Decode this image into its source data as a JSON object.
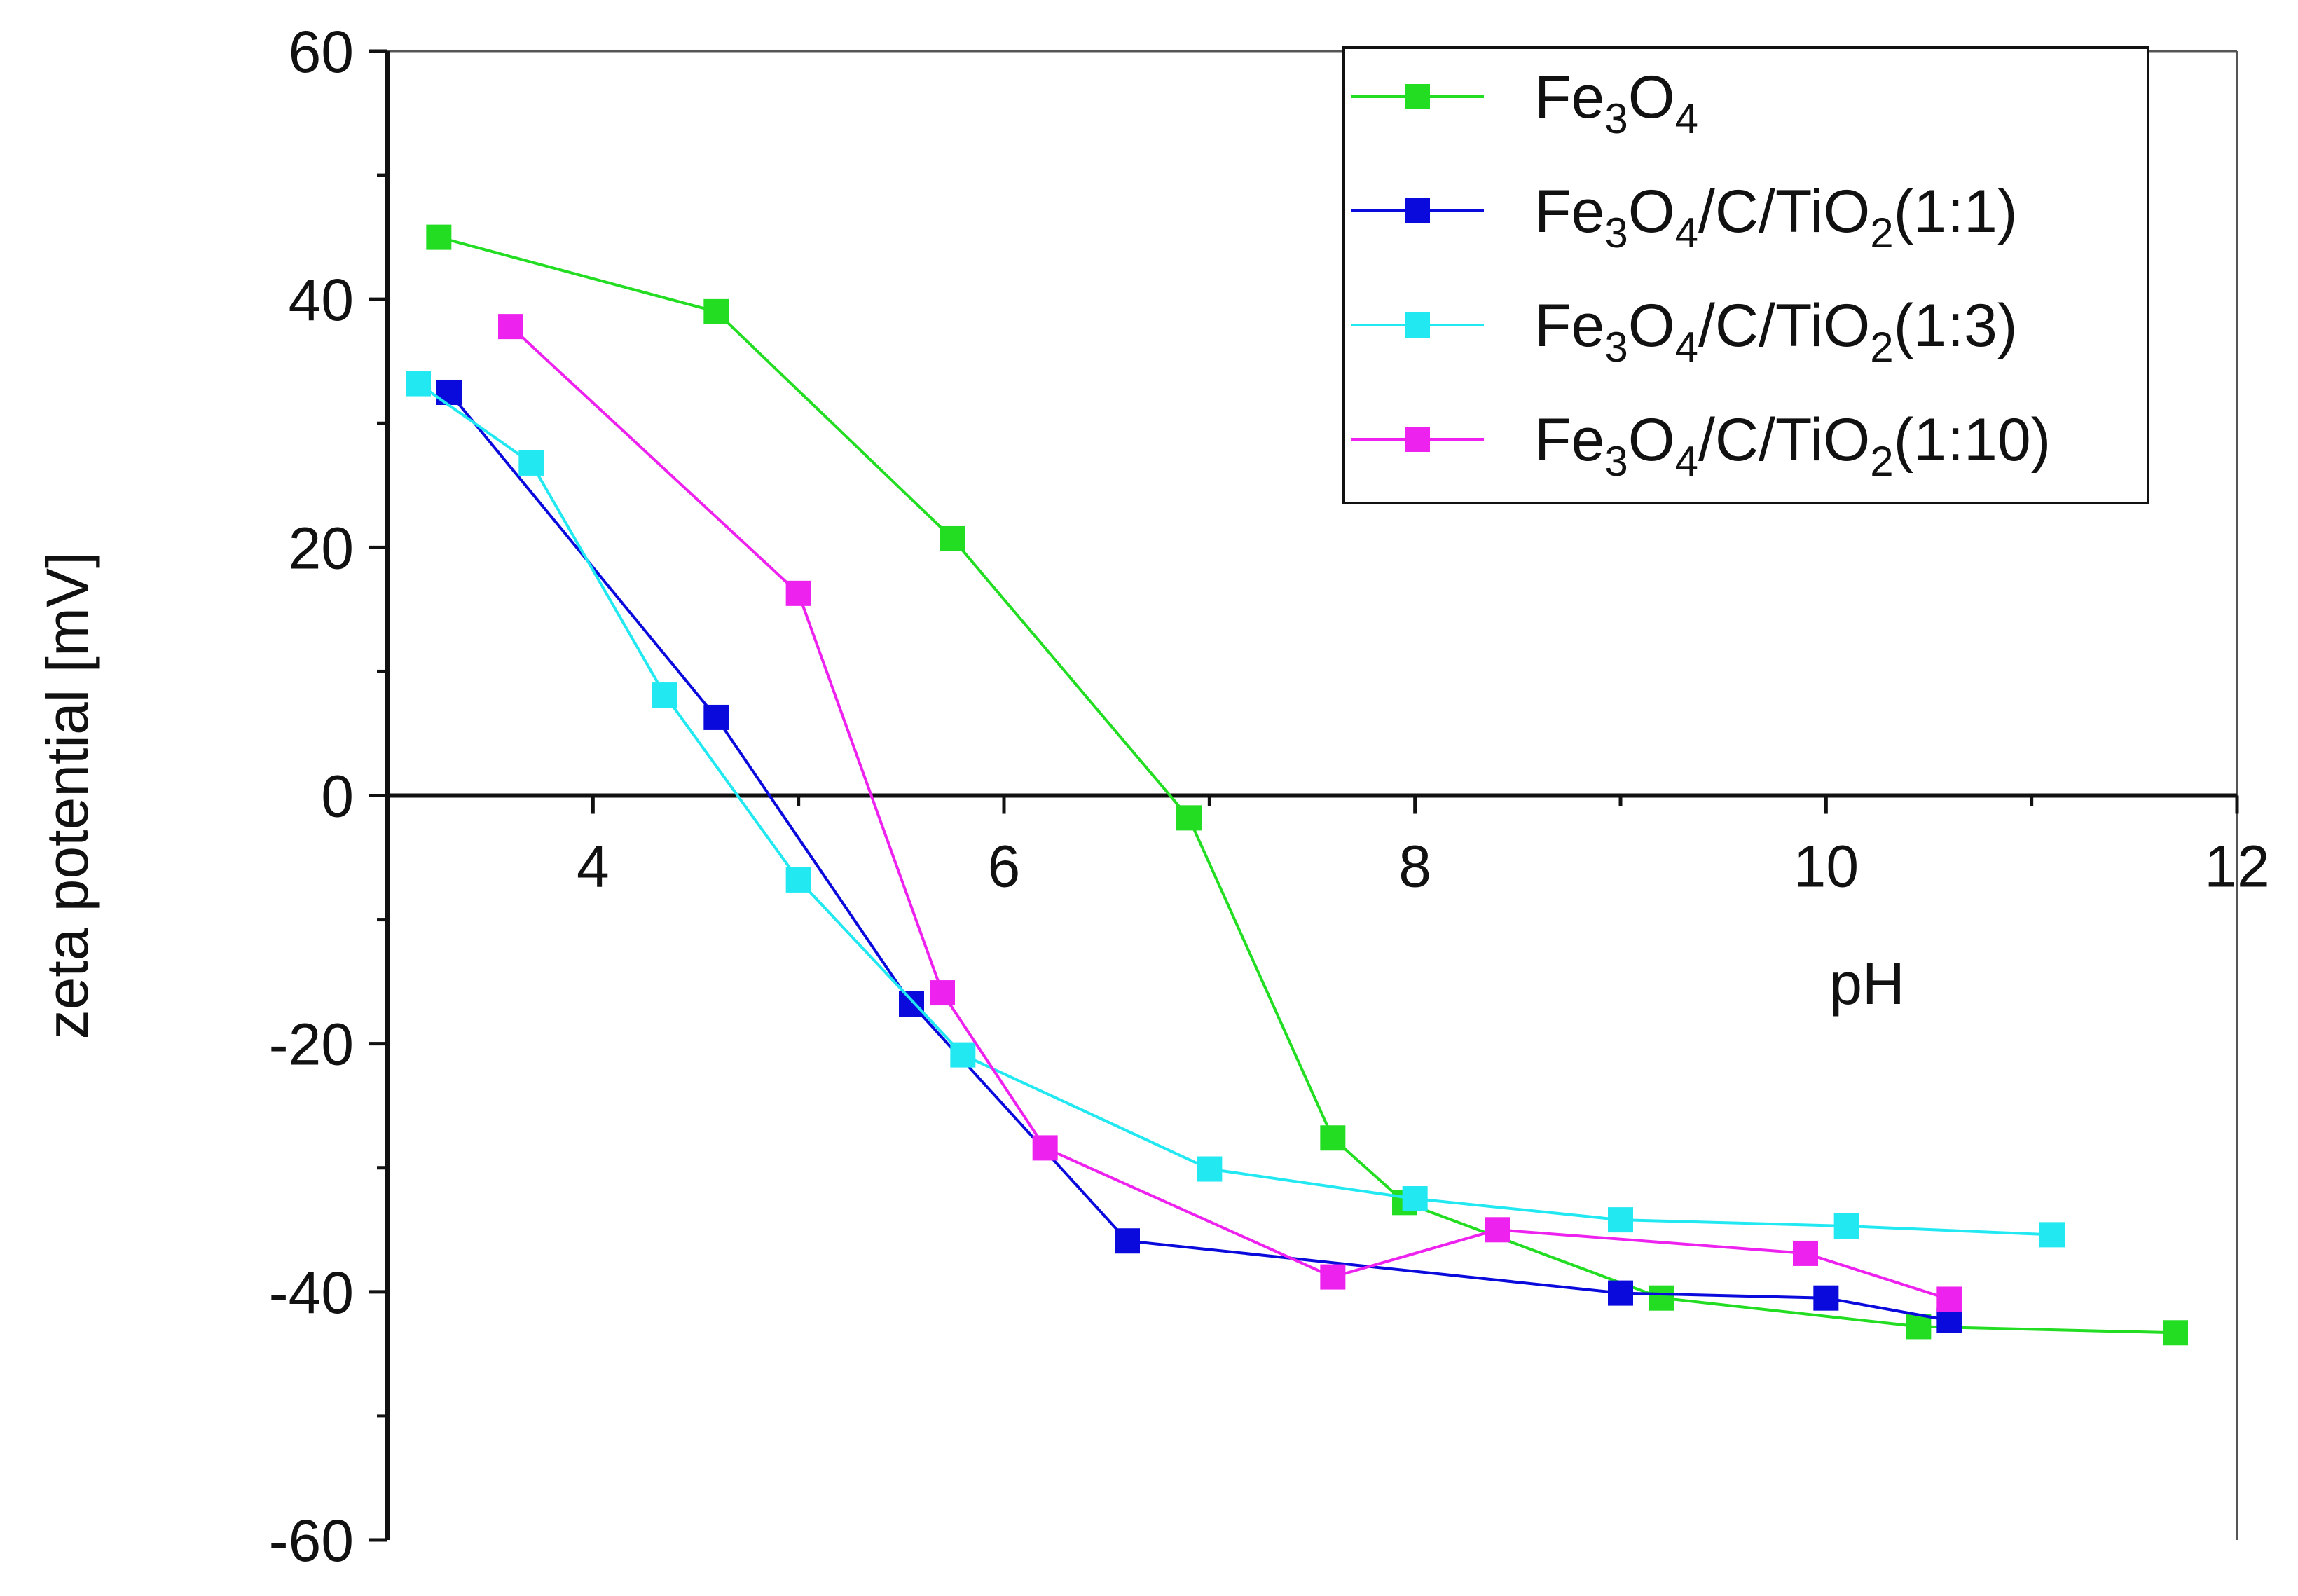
{
  "chart_data": {
    "type": "line",
    "title": "",
    "xlabel": "pH",
    "ylabel": "zeta potential [mV]",
    "xlim": [
      3,
      12
    ],
    "ylim": [
      -60,
      60
    ],
    "x_ticks": [
      4,
      6,
      8,
      10,
      12
    ],
    "y_ticks": [
      60,
      40,
      20,
      0,
      -20,
      -40,
      -60
    ],
    "x_tick_labels": [
      "4",
      "6",
      "8",
      "10",
      "12"
    ],
    "y_tick_labels": [
      "60",
      "40",
      "20",
      "0",
      "-20",
      "-40",
      "-60"
    ],
    "grid": false,
    "legend_position": "top-right",
    "series": [
      {
        "name": "Fe3O4",
        "label_parts": [
          {
            "t": "Fe"
          },
          {
            "t": "3",
            "sub": true
          },
          {
            "t": "O"
          },
          {
            "t": "4",
            "sub": true
          }
        ],
        "color": "#22dd22",
        "x": [
          3.25,
          4.6,
          5.75,
          6.9,
          7.6,
          7.95,
          9.2,
          10.45,
          11.7
        ],
        "y": [
          45,
          39,
          20.7,
          -1.8,
          -27.6,
          -32.8,
          -40.5,
          -42.8,
          -43.3
        ]
      },
      {
        "name": "Fe3O4/C/TiO2(1:1)",
        "label_parts": [
          {
            "t": "Fe"
          },
          {
            "t": "3",
            "sub": true
          },
          {
            "t": "O"
          },
          {
            "t": "4",
            "sub": true
          },
          {
            "t": "/C/TiO"
          },
          {
            "t": "2",
            "sub": true
          },
          {
            "t": "(1:1)"
          }
        ],
        "color": "#0a0adc",
        "x": [
          3.3,
          4.6,
          5.55,
          6.6,
          9.0,
          10.0,
          10.6
        ],
        "y": [
          32.5,
          6.3,
          -16.8,
          -35.9,
          -40.1,
          -40.5,
          -42.3
        ]
      },
      {
        "name": "Fe3O4/C/TiO2(1:3)",
        "label_parts": [
          {
            "t": "Fe"
          },
          {
            "t": "3",
            "sub": true
          },
          {
            "t": "O"
          },
          {
            "t": "4",
            "sub": true
          },
          {
            "t": "/C/TiO"
          },
          {
            "t": "2",
            "sub": true
          },
          {
            "t": "(1:3)"
          }
        ],
        "color": "#22e8f2",
        "x": [
          3.15,
          3.7,
          4.35,
          5.0,
          5.8,
          7.0,
          8.0,
          9.0,
          10.1,
          11.1
        ],
        "y": [
          33.2,
          26.8,
          8.1,
          -6.8,
          -20.9,
          -30.1,
          -32.5,
          -34.2,
          -34.7,
          -35.4
        ]
      },
      {
        "name": "Fe3O4/C/TiO2(1:10)",
        "label_parts": [
          {
            "t": "Fe"
          },
          {
            "t": "3",
            "sub": true
          },
          {
            "t": "O"
          },
          {
            "t": "4",
            "sub": true
          },
          {
            "t": "/C/TiO"
          },
          {
            "t": "2",
            "sub": true
          },
          {
            "t": "(1:10)"
          }
        ],
        "color": "#ee22ee",
        "x": [
          3.6,
          5.0,
          5.7,
          6.2,
          7.6,
          8.4,
          9.9,
          10.6
        ],
        "y": [
          37.8,
          16.3,
          -15.9,
          -28.4,
          -38.8,
          -35.0,
          -36.9,
          -40.6
        ]
      }
    ]
  }
}
